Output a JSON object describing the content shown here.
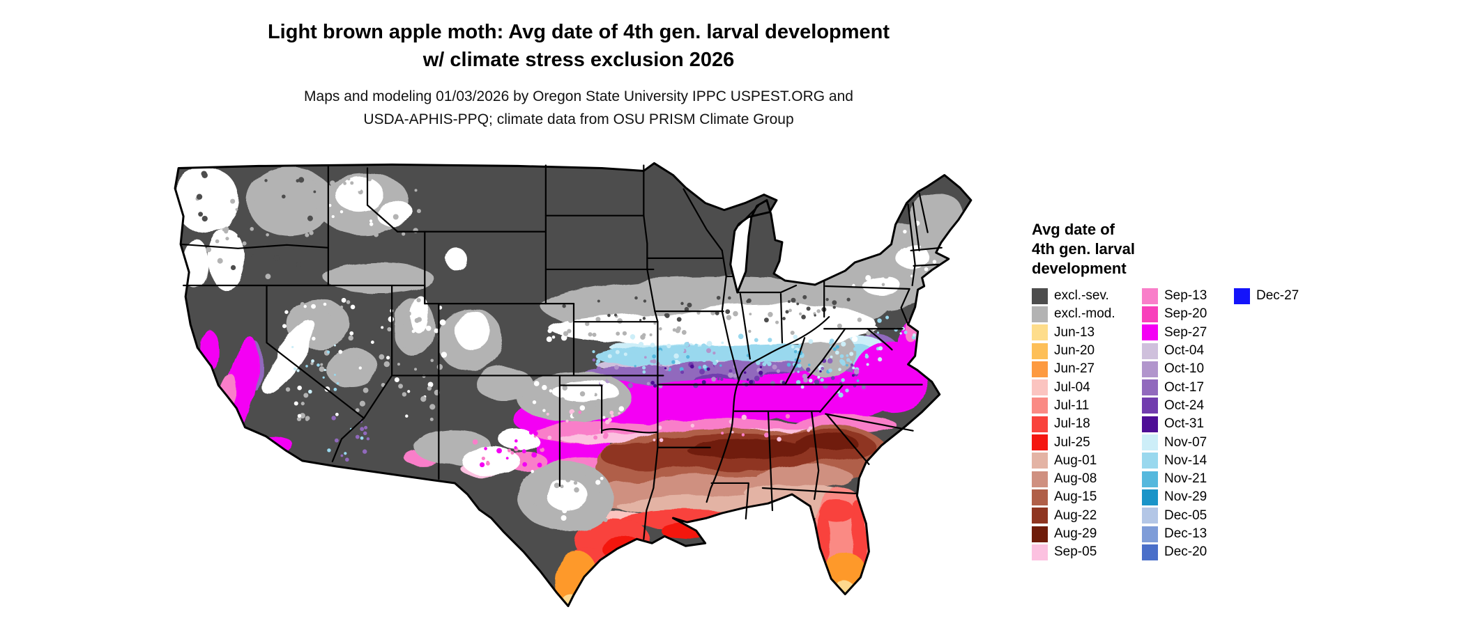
{
  "header": {
    "title_line1": "Light brown apple moth: Avg date of 4th gen. larval development",
    "title_line2": "w/ climate stress exclusion 2026",
    "subtitle_line1": "Maps and modeling 01/03/2026 by Oregon State University IPPC USPEST.ORG and",
    "subtitle_line2": "USDA-APHIS-PPQ; climate data from OSU PRISM Climate Group"
  },
  "map": {
    "type": "choropleth",
    "region": "contiguous United States",
    "no_data_color": "#ffffff"
  },
  "legend": {
    "title_lines": [
      "Avg date of",
      "4th gen. larval",
      "development"
    ],
    "columns": [
      [
        {
          "label": "excl.-sev.",
          "color": "#4d4d4d"
        },
        {
          "label": "excl.-mod.",
          "color": "#b3b3b3"
        },
        {
          "label": "Jun-13",
          "color": "#fedd8b"
        },
        {
          "label": "Jun-20",
          "color": "#fdbf58"
        },
        {
          "label": "Jun-27",
          "color": "#fd9a41"
        },
        {
          "label": "Jul-04",
          "color": "#fbc4c0"
        },
        {
          "label": "Jul-11",
          "color": "#fa8a84"
        },
        {
          "label": "Jul-18",
          "color": "#f9423c"
        },
        {
          "label": "Jul-25",
          "color": "#f41711"
        },
        {
          "label": "Aug-01",
          "color": "#e3b3a4"
        },
        {
          "label": "Aug-08",
          "color": "#cf9080"
        },
        {
          "label": "Aug-15",
          "color": "#b05f48"
        },
        {
          "label": "Aug-22",
          "color": "#8f3520"
        },
        {
          "label": "Aug-29",
          "color": "#6f1c0a"
        },
        {
          "label": "Sep-05",
          "color": "#fcc1e0"
        }
      ],
      [
        {
          "label": "Sep-13",
          "color": "#f97ec9"
        },
        {
          "label": "Sep-20",
          "color": "#f840bb"
        },
        {
          "label": "Sep-27",
          "color": "#f400f4"
        },
        {
          "label": "Oct-04",
          "color": "#cfc0dc"
        },
        {
          "label": "Oct-10",
          "color": "#b195cc"
        },
        {
          "label": "Oct-17",
          "color": "#9169bd"
        },
        {
          "label": "Oct-24",
          "color": "#713cae"
        },
        {
          "label": "Oct-31",
          "color": "#4e0e96"
        },
        {
          "label": "Nov-07",
          "color": "#cdeef8"
        },
        {
          "label": "Nov-14",
          "color": "#99d8ee"
        },
        {
          "label": "Nov-21",
          "color": "#55b8dd"
        },
        {
          "label": "Nov-29",
          "color": "#1a94c8"
        },
        {
          "label": "Dec-05",
          "color": "#b3c6e6"
        },
        {
          "label": "Dec-13",
          "color": "#7e9cd8"
        },
        {
          "label": "Dec-20",
          "color": "#4a6fc9"
        }
      ],
      [
        {
          "label": "Dec-27",
          "color": "#1414fa"
        }
      ]
    ]
  }
}
